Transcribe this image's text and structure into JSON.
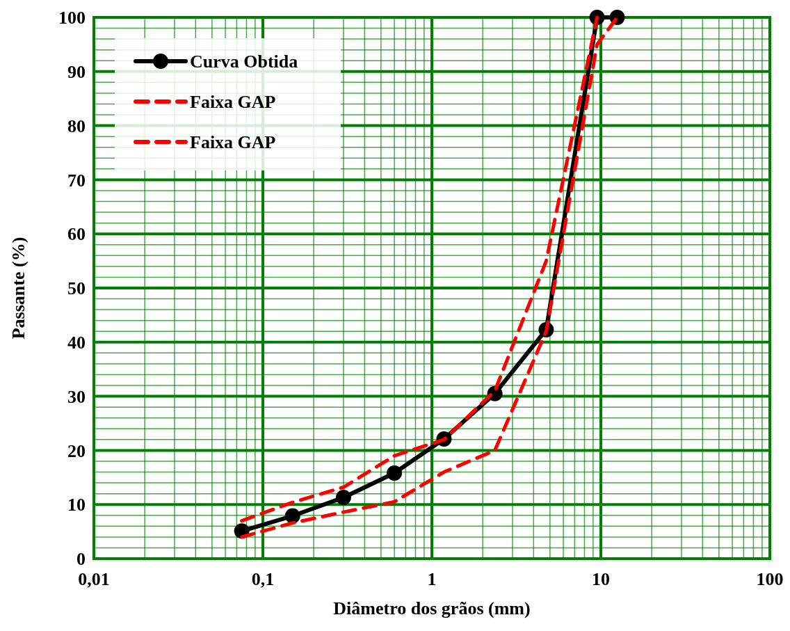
{
  "chart_data": {
    "type": "line",
    "xlabel": "Diâmetro dos grãos (mm)",
    "ylabel": "Passante (%)",
    "log": "x",
    "grid": true,
    "legend": "top left",
    "line_style": "solid",
    "marker": "circle",
    "xlim": [
      0.01,
      100
    ],
    "ylim": [
      0,
      100
    ],
    "xticks": [
      {
        "value": 0.01,
        "label": "0,01"
      },
      {
        "value": 0.02,
        "label": null
      },
      {
        "value": 0.03,
        "label": null
      },
      {
        "value": 0.04,
        "label": null
      },
      {
        "value": 0.05,
        "label": null
      },
      {
        "value": 0.06,
        "label": null
      },
      {
        "value": 0.07,
        "label": null
      },
      {
        "value": 0.08,
        "label": null
      },
      {
        "value": 0.09,
        "label": null
      },
      {
        "value": 0.1,
        "label": "0,1"
      },
      {
        "value": 0.2,
        "label": null
      },
      {
        "value": 0.3,
        "label": null
      },
      {
        "value": 0.4,
        "label": null
      },
      {
        "value": 0.5,
        "label": null
      },
      {
        "value": 0.6,
        "label": null
      },
      {
        "value": 0.7,
        "label": null
      },
      {
        "value": 0.8,
        "label": null
      },
      {
        "value": 0.9,
        "label": null
      },
      1,
      {
        "value": 2,
        "label": null
      },
      {
        "value": 3,
        "label": null
      },
      {
        "value": 4,
        "label": null
      },
      {
        "value": 5,
        "label": null
      },
      {
        "value": 6,
        "label": null
      },
      {
        "value": 7,
        "label": null
      },
      {
        "value": 8,
        "label": null
      },
      {
        "value": 9,
        "label": null
      },
      10,
      {
        "value": 20,
        "label": null
      },
      {
        "value": 30,
        "label": null
      },
      {
        "value": 40,
        "label": null
      },
      {
        "value": 50,
        "label": null
      },
      {
        "value": 60,
        "label": null
      },
      {
        "value": 70,
        "label": null
      },
      {
        "value": 80,
        "label": null
      },
      {
        "value": 90,
        "label": null
      },
      100
    ],
    "yticks": [
      0,
      {
        "value": 2,
        "label": null
      },
      {
        "value": 4,
        "label": null
      },
      {
        "value": 6,
        "label": null
      },
      {
        "value": 8,
        "label": null
      },
      10,
      {
        "value": 12,
        "label": null
      },
      {
        "value": 14,
        "label": null
      },
      {
        "value": 16,
        "label": null
      },
      {
        "value": 18,
        "label": null
      },
      20,
      {
        "value": 22,
        "label": null
      },
      {
        "value": 24,
        "label": null
      },
      {
        "value": 26,
        "label": null
      },
      {
        "value": 28,
        "label": null
      },
      30,
      {
        "value": 32,
        "label": null
      },
      {
        "value": 34,
        "label": null
      },
      {
        "value": 36,
        "label": null
      },
      {
        "value": 38,
        "label": null
      },
      40,
      {
        "value": 42,
        "label": null
      },
      {
        "value": 44,
        "label": null
      },
      {
        "value": 46,
        "label": null
      },
      {
        "value": 48,
        "label": null
      },
      50,
      {
        "value": 52,
        "label": null
      },
      {
        "value": 54,
        "label": null
      },
      {
        "value": 56,
        "label": null
      },
      {
        "value": 58,
        "label": null
      },
      60,
      {
        "value": 62,
        "label": null
      },
      {
        "value": 64,
        "label": null
      },
      {
        "value": 66,
        "label": null
      },
      {
        "value": 68,
        "label": null
      },
      70,
      {
        "value": 72,
        "label": null
      },
      {
        "value": 74,
        "label": null
      },
      {
        "value": 76,
        "label": null
      },
      {
        "value": 78,
        "label": null
      },
      80,
      {
        "value": 82,
        "label": null
      },
      {
        "value": 84,
        "label": null
      },
      {
        "value": 86,
        "label": null
      },
      {
        "value": 88,
        "label": null
      },
      90,
      {
        "value": 92,
        "label": null
      },
      {
        "value": 94,
        "label": null
      },
      {
        "value": 96,
        "label": null
      },
      {
        "value": 98,
        "label": null
      },
      100
    ],
    "x": [
      0.075,
      0.15,
      0.3,
      0.6,
      1.18,
      2.36,
      4.75,
      9.5,
      12.5
    ],
    "series": [
      {
        "name": "Curva Obtida",
        "color": "#000000",
        "values": [
          5.1,
          7.9,
          11.3,
          15.8,
          22.1,
          30.5,
          42.3,
          100,
          100
        ]
      },
      {
        "name": "Faixa GAP",
        "color": "#ff0000",
        "line_style": "dashed",
        "marker": "none",
        "x": [
          0.075,
          0.15,
          0.3,
          0.6,
          1.18,
          2.36,
          4.75,
          9.5
        ],
        "values": [
          7,
          10.4,
          13.2,
          19,
          22,
          31,
          55,
          100
        ]
      },
      {
        "name": "Faixa GAP",
        "color": "#ff0000",
        "line_style": "dashed",
        "marker": "none",
        "x": [
          0.075,
          0.15,
          0.3,
          0.6,
          1.18,
          2.36,
          4.75,
          9.5,
          12.5
        ],
        "values": [
          4,
          6.6,
          8.6,
          10.5,
          16,
          20,
          42,
          95,
          100
        ]
      }
    ]
  }
}
